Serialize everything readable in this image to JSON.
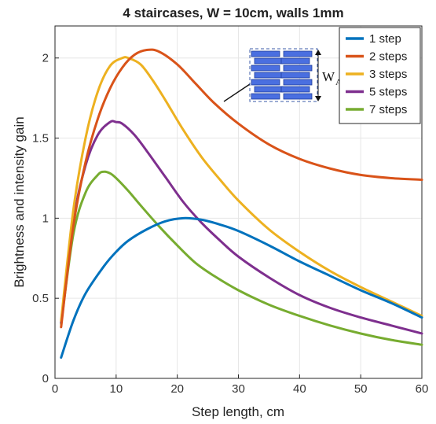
{
  "chart_data": {
    "type": "line",
    "title": "4 staircases, W = 10cm, walls 1mm",
    "xlabel": "Step length, cm",
    "ylabel": "Brightness and intensity  gain",
    "xlim": [
      0,
      60
    ],
    "ylim": [
      0,
      2.2
    ],
    "xticks": [
      0,
      10,
      20,
      30,
      40,
      50,
      60
    ],
    "yticks": [
      0,
      0.5,
      1,
      1.5,
      2
    ],
    "xtick_labels": [
      "0",
      "10",
      "20",
      "30",
      "40",
      "50",
      "60"
    ],
    "ytick_labels": [
      "0",
      "0.5",
      "1",
      "1.5",
      "2"
    ],
    "grid": true,
    "legend_position": "top-right",
    "inset_label_main": "W",
    "inset_label_sub": "A",
    "series": [
      {
        "name": "1 step",
        "color": "#0072BD",
        "x": [
          1,
          3,
          5,
          8,
          10,
          12,
          15,
          18,
          21,
          24,
          27,
          30,
          35,
          40,
          45,
          50,
          55,
          60
        ],
        "y": [
          0.13,
          0.36,
          0.53,
          0.7,
          0.79,
          0.86,
          0.93,
          0.98,
          1.0,
          0.99,
          0.96,
          0.92,
          0.83,
          0.73,
          0.64,
          0.55,
          0.47,
          0.38
        ]
      },
      {
        "name": "2 steps",
        "color": "#D95319",
        "x": [
          1,
          3,
          5,
          7,
          9,
          11,
          13,
          15,
          17,
          20,
          23,
          26,
          30,
          35,
          40,
          45,
          50,
          55,
          60
        ],
        "y": [
          0.32,
          0.95,
          1.35,
          1.62,
          1.81,
          1.94,
          2.02,
          2.05,
          2.04,
          1.96,
          1.84,
          1.72,
          1.59,
          1.46,
          1.37,
          1.31,
          1.27,
          1.25,
          1.24
        ]
      },
      {
        "name": "3 steps",
        "color": "#EDB120",
        "x": [
          1,
          3,
          5,
          7,
          9,
          11,
          12,
          14,
          16,
          18,
          21,
          24,
          27,
          30,
          35,
          40,
          45,
          50,
          55,
          60
        ],
        "y": [
          0.36,
          1.05,
          1.5,
          1.79,
          1.95,
          2.0,
          2.0,
          1.96,
          1.86,
          1.74,
          1.55,
          1.38,
          1.24,
          1.11,
          0.93,
          0.79,
          0.67,
          0.57,
          0.48,
          0.39
        ]
      },
      {
        "name": "5 steps",
        "color": "#7E2F8E",
        "x": [
          1,
          3,
          5,
          7,
          9,
          10,
          11,
          13,
          15,
          18,
          21,
          24,
          27,
          30,
          35,
          40,
          45,
          50,
          55,
          60
        ],
        "y": [
          0.35,
          0.98,
          1.33,
          1.52,
          1.6,
          1.6,
          1.59,
          1.52,
          1.42,
          1.26,
          1.1,
          0.97,
          0.86,
          0.76,
          0.63,
          0.52,
          0.44,
          0.38,
          0.33,
          0.28
        ]
      },
      {
        "name": "7 steps",
        "color": "#77AC30",
        "x": [
          1,
          3,
          5,
          7,
          8,
          9,
          10,
          12,
          14,
          17,
          20,
          23,
          26,
          30,
          35,
          40,
          45,
          50,
          55,
          60
        ],
        "y": [
          0.34,
          0.9,
          1.16,
          1.27,
          1.29,
          1.28,
          1.25,
          1.17,
          1.08,
          0.95,
          0.83,
          0.72,
          0.64,
          0.55,
          0.46,
          0.39,
          0.33,
          0.28,
          0.24,
          0.21
        ]
      }
    ]
  }
}
